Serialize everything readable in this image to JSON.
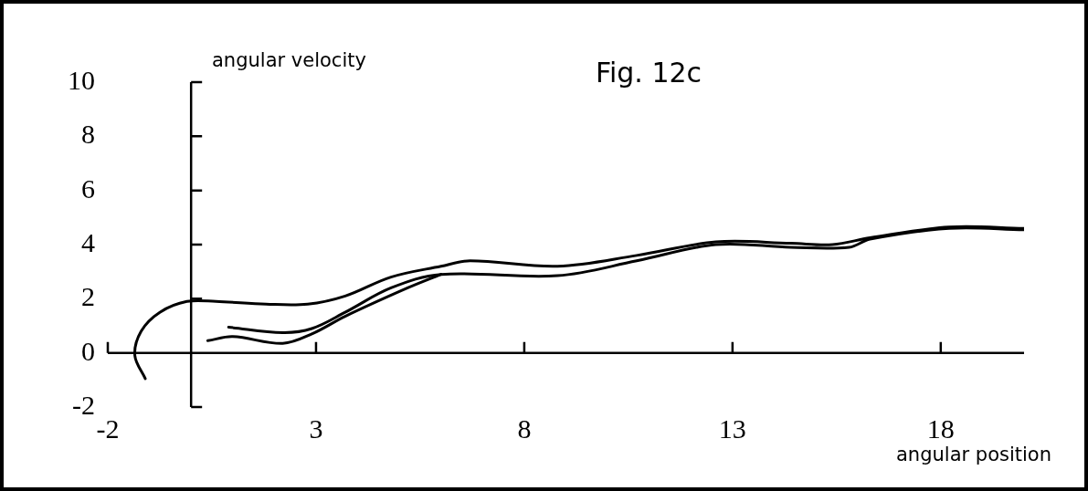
{
  "chart_data": {
    "type": "line",
    "title": "Fig. 12c",
    "xlabel": "angular position",
    "ylabel": "angular velocity",
    "xlim": [
      -2,
      20
    ],
    "ylim": [
      -2,
      10
    ],
    "xticks": [
      -2,
      3,
      8,
      13,
      18
    ],
    "yticks": [
      -2,
      0,
      2,
      4,
      6,
      8,
      10
    ],
    "grid": false,
    "legend": false,
    "marker": "none",
    "line_style": "solid",
    "series": [
      {
        "color": "#000000",
        "x": [
          -1.1,
          -1.35,
          -1.2,
          -0.75,
          -0.1,
          0.6,
          1.8,
          2.8,
          3.7,
          4.8,
          6,
          6.7,
          8.8,
          10.7,
          12.6,
          14.4,
          15.4,
          16.3,
          18.2,
          20
        ],
        "values": [
          -0.95,
          -0.1,
          0.8,
          1.5,
          1.9,
          1.9,
          1.8,
          1.8,
          2.1,
          2.8,
          3.2,
          3.4,
          3.2,
          3.6,
          4.1,
          4.05,
          4,
          4.25,
          4.65,
          4.6
        ]
      },
      {
        "color": "#000000",
        "x": [
          0.9,
          2.2,
          2.9,
          3.7,
          4.8,
          6,
          8.8,
          10.7,
          12.6,
          14.4,
          15.8,
          16.3,
          18.2,
          20
        ],
        "values": [
          0.95,
          0.75,
          0.9,
          1.5,
          2.4,
          2.9,
          2.85,
          3.4,
          4,
          3.9,
          3.9,
          4.2,
          4.6,
          4.55
        ]
      },
      {
        "color": "#000000",
        "x": [
          0.4,
          1,
          2.2,
          2.9,
          3.7,
          5.2,
          6
        ],
        "values": [
          0.45,
          0.6,
          0.35,
          0.7,
          1.35,
          2.4,
          2.9
        ]
      }
    ]
  }
}
